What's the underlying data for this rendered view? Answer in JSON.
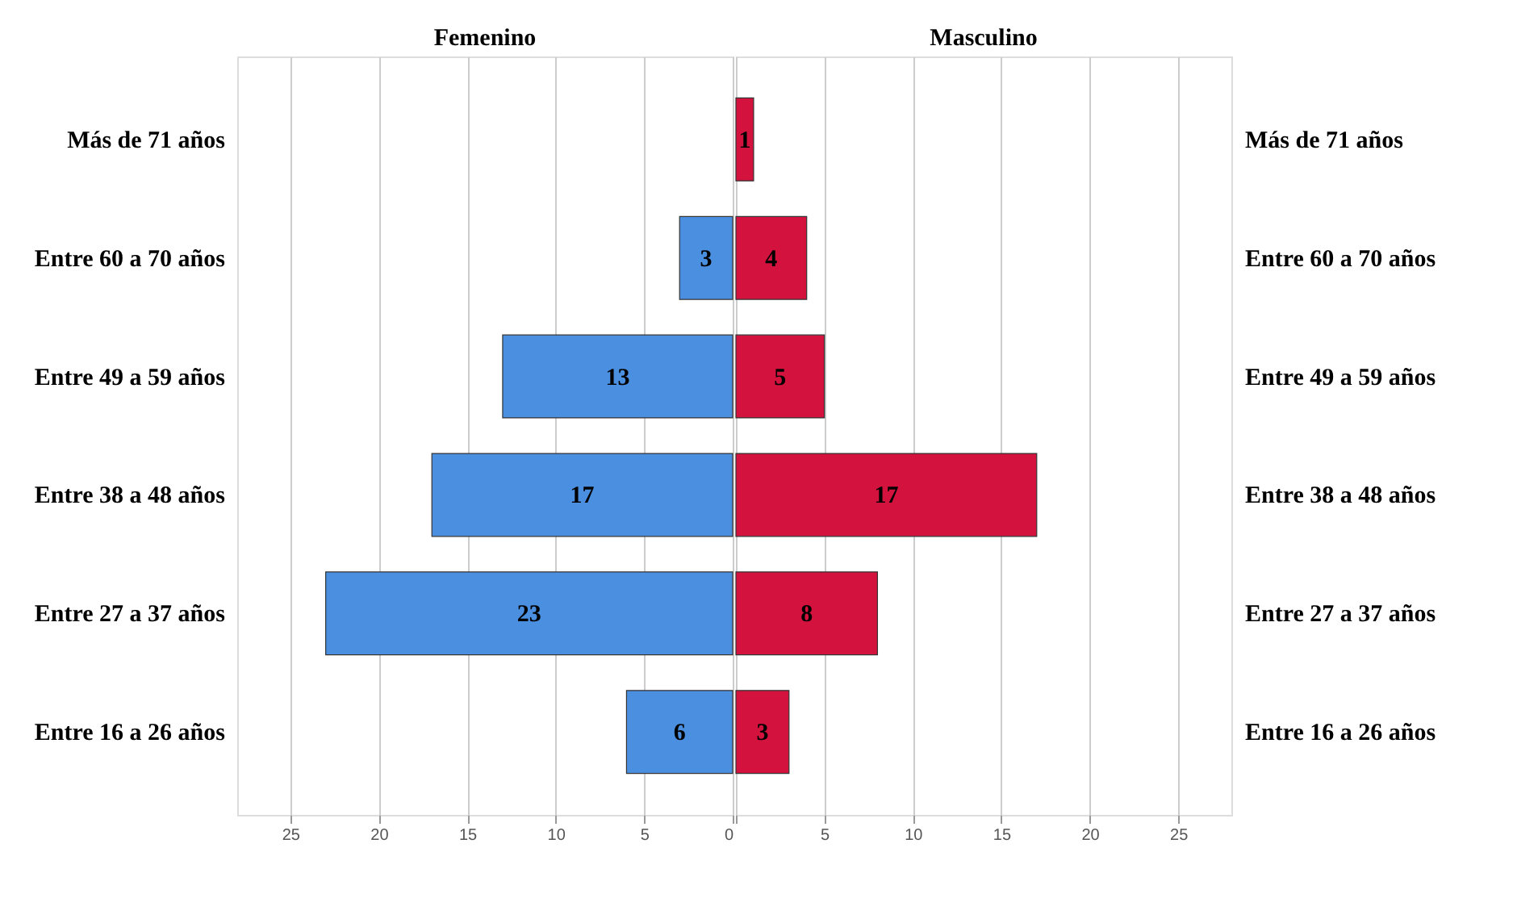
{
  "chart_data": [
    {
      "type": "bar",
      "orientation": "horizontal",
      "title": "Femenino",
      "categories": [
        "Más de 71 años",
        "Entre 60 a 70 años",
        "Entre 49 a 59 años",
        "Entre 38 a 48 años",
        "Entre 27 a 37 años",
        "Entre 16 a 26 años"
      ],
      "series": [
        {
          "color": "#4a8fe0",
          "values": [
            null,
            3,
            13,
            17,
            23,
            6
          ]
        }
      ],
      "xlim": [
        28,
        0
      ],
      "xticks": [
        25,
        20,
        15,
        10,
        5,
        0
      ],
      "grid": "x",
      "data_labels": true
    },
    {
      "type": "bar",
      "orientation": "horizontal",
      "title": "Masculino",
      "categories": [
        "Más de 71 años",
        "Entre 60 a 70 años",
        "Entre 49 a 59 años",
        "Entre 38 a 48 años",
        "Entre 27 a 37 años",
        "Entre 16 a 26 años"
      ],
      "series": [
        {
          "color": "#d3123d",
          "values": [
            1,
            4,
            5,
            17,
            8,
            3
          ]
        }
      ],
      "xlim": [
        0,
        28
      ],
      "xticks": [
        {
          "value": 0,
          "label": null
        },
        5,
        10,
        15,
        20,
        25
      ],
      "grid": "x",
      "data_labels": true
    }
  ]
}
